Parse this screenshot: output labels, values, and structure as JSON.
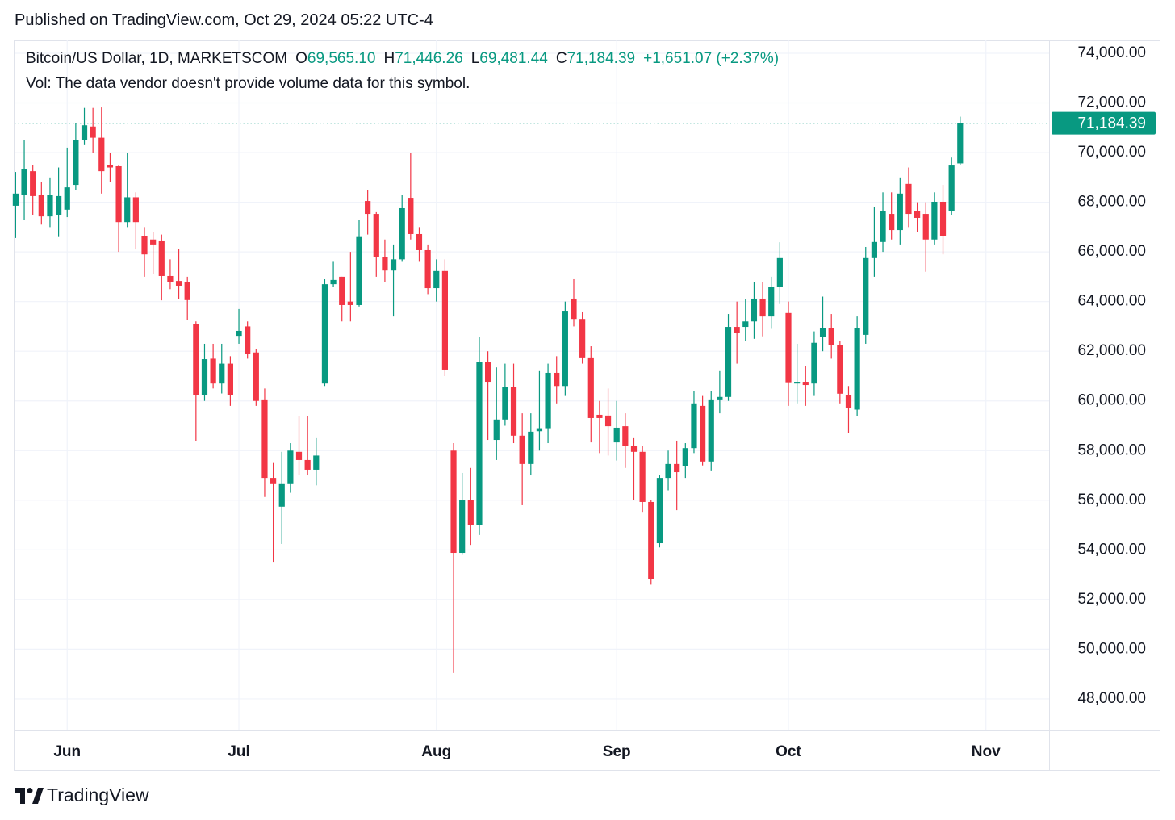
{
  "header": {
    "title": "Published on TradingView.com, Oct 29, 2024 05:22 UTC-4"
  },
  "chart_data": {
    "type": "candlestick",
    "symbol": "Bitcoin/US Dollar, 1D, MARKETSCOM",
    "legend_values": [
      {
        "key": "O",
        "label": "69,565.10"
      },
      {
        "key": "H",
        "label": "71,446.26"
      },
      {
        "key": "L",
        "label": "69,481.44"
      },
      {
        "key": "C",
        "label": "71,184.39"
      }
    ],
    "change": "+1,651.07 (+2.37%)",
    "volume_note": "Vol: The data vendor doesn't provide volume data for this symbol.",
    "categories": [
      null,
      null,
      null,
      null,
      null,
      null,
      "Jun",
      null,
      null,
      null,
      null,
      null,
      null,
      null,
      null,
      null,
      null,
      null,
      null,
      null,
      null,
      null,
      null,
      null,
      null,
      null,
      "Jul",
      null,
      null,
      null,
      null,
      null,
      null,
      null,
      null,
      null,
      null,
      null,
      null,
      null,
      null,
      null,
      null,
      null,
      null,
      null,
      null,
      null,
      null,
      "Aug",
      null,
      null,
      null,
      null,
      null,
      null,
      null,
      null,
      null,
      null,
      null,
      null,
      null,
      null,
      null,
      null,
      null,
      null,
      null,
      null,
      "Sep",
      null,
      null,
      null,
      null,
      null,
      null,
      null,
      null,
      null,
      null,
      null,
      null,
      null,
      null,
      null,
      null,
      null,
      null,
      null,
      "Oct",
      null,
      null,
      null,
      null,
      null,
      null,
      null,
      null,
      null,
      null,
      null,
      null,
      null,
      null,
      null,
      null,
      null,
      null,
      null,
      null,
      null,
      null,
      "Nov"
    ],
    "open": [
      67860,
      68310,
      69250,
      68280,
      67430,
      67500,
      67700,
      68700,
      70500,
      71050,
      70600,
      69500,
      69450,
      67200,
      68200,
      66650,
      66500,
      66460,
      65030,
      64830,
      64770,
      63080,
      60220,
      61700,
      60700,
      61500,
      62620,
      63000,
      61950,
      60060,
      56900,
      55740,
      56650,
      57950,
      57620,
      57230,
      60700,
      64700,
      65000,
      64000,
      63860,
      68050,
      67530,
      65800,
      65250,
      65700,
      68180,
      66720,
      66070,
      64540,
      65230,
      58000,
      53880,
      56000,
      55000,
      61580,
      58430,
      59250,
      60550,
      58600,
      57460,
      58780,
      58900,
      61130,
      60600,
      64120,
      63300,
      61750,
      59440,
      59410,
      58330,
      58980,
      58200,
      57950,
      55930,
      54270,
      56900,
      57460,
      57370,
      58100,
      59800,
      57560,
      60060,
      60160,
      62980,
      62980,
      63200,
      64120,
      63400,
      64600,
      63540,
      60700,
      60770,
      60700,
      62560,
      62920,
      62240,
      60220,
      59650,
      62660,
      65750,
      66400,
      67530,
      66880,
      68740,
      67630,
      67530,
      66500,
      68020,
      67630,
      69565.1,
      null,
      null,
      null
    ],
    "high": [
      69220,
      70520,
      69500,
      68800,
      69000,
      69400,
      70200,
      71200,
      71800,
      71800,
      71820,
      70000,
      69500,
      70000,
      68400,
      67000,
      66800,
      66700,
      65700,
      66130,
      65000,
      63200,
      62300,
      62300,
      62300,
      61800,
      63700,
      63200,
      62100,
      60500,
      57500,
      57950,
      58300,
      59400,
      59400,
      58500,
      64900,
      65600,
      65000,
      66000,
      67300,
      68500,
      67600,
      66500,
      66300,
      68300,
      70000,
      67000,
      66300,
      65700,
      65700,
      58300,
      57100,
      57300,
      62560,
      62000,
      61350,
      61500,
      61500,
      59500,
      59500,
      61200,
      61500,
      61800,
      64000,
      64900,
      63600,
      62200,
      60000,
      60500,
      60000,
      59500,
      58500,
      58200,
      56000,
      57000,
      58000,
      58400,
      58300,
      60400,
      60200,
      60400,
      61200,
      63500,
      64000,
      64100,
      64800,
      64800,
      65000,
      66390,
      64000,
      62300,
      61400,
      62800,
      64200,
      63500,
      62400,
      60600,
      63400,
      66200,
      67800,
      68400,
      68400,
      69000,
      69400,
      68000,
      68000,
      68400,
      68700,
      69800,
      71446.26,
      null,
      null,
      null
    ],
    "low": [
      66560,
      67300,
      67500,
      67100,
      67000,
      66600,
      67400,
      68500,
      70300,
      70000,
      68350,
      68800,
      66000,
      67000,
      66100,
      65000,
      65100,
      64050,
      64500,
      64100,
      63250,
      58370,
      60000,
      60500,
      60300,
      59800,
      62300,
      61700,
      59800,
      56130,
      53520,
      54240,
      56300,
      57000,
      57000,
      56600,
      60600,
      64600,
      63200,
      63200,
      63800,
      66700,
      65000,
      64800,
      63400,
      65600,
      66500,
      65600,
      64300,
      64000,
      61000,
      49040,
      53800,
      54200,
      54600,
      58430,
      57620,
      59000,
      58300,
      55800,
      57000,
      58000,
      58300,
      59900,
      60200,
      63000,
      61500,
      58330,
      57900,
      57800,
      57600,
      57300,
      56000,
      55500,
      52600,
      54100,
      56400,
      55600,
      56900,
      57900,
      57400,
      57200,
      59500,
      60000,
      61500,
      62400,
      62500,
      62600,
      62900,
      63900,
      59800,
      59900,
      59800,
      60200,
      62000,
      61700,
      59900,
      58700,
      59400,
      62300,
      65000,
      66000,
      66500,
      66300,
      67000,
      66800,
      65200,
      66300,
      65900,
      67500,
      69481.44,
      null,
      null,
      null
    ],
    "close": [
      68350,
      69320,
      68250,
      67430,
      68280,
      68250,
      68600,
      70500,
      71100,
      70600,
      69250,
      69400,
      67200,
      68200,
      67200,
      65900,
      66300,
      65030,
      64770,
      64640,
      64060,
      60220,
      61680,
      60700,
      61500,
      60220,
      62820,
      61900,
      60000,
      56900,
      56650,
      56650,
      58000,
      57620,
      57230,
      57800,
      64700,
      64870,
      63860,
      63860,
      66600,
      67530,
      65800,
      65250,
      65700,
      67760,
      66720,
      66070,
      64540,
      65230,
      61260,
      53880,
      56000,
      55000,
      61580,
      60770,
      59250,
      60550,
      58600,
      57460,
      58760,
      58900,
      61130,
      60600,
      63630,
      63300,
      61750,
      59310,
      59310,
      58980,
      58920,
      58200,
      57950,
      55930,
      52810,
      56900,
      57460,
      57130,
      58100,
      59900,
      57560,
      60060,
      60160,
      62980,
      62750,
      63200,
      64120,
      63400,
      64600,
      65750,
      60750,
      60770,
      60640,
      62340,
      62920,
      62240,
      60290,
      59730,
      62920,
      65750,
      66400,
      67630,
      66880,
      68350,
      67530,
      67370,
      66500,
      68020,
      66650,
      69480,
      71184.39,
      null,
      null,
      null
    ],
    "up_color": "#089981",
    "down_color": "#f23645",
    "ylim": [
      46730,
      74520
    ],
    "yticks": [
      {
        "value": 48000,
        "label": "48,000.00"
      },
      {
        "value": 50000,
        "label": "50,000.00"
      },
      {
        "value": 52000,
        "label": "52,000.00"
      },
      {
        "value": 54000,
        "label": "54,000.00"
      },
      {
        "value": 56000,
        "label": "56,000.00"
      },
      {
        "value": 58000,
        "label": "58,000.00"
      },
      {
        "value": 60000,
        "label": "60,000.00"
      },
      {
        "value": 62000,
        "label": "62,000.00"
      },
      {
        "value": 64000,
        "label": "64,000.00"
      },
      {
        "value": 66000,
        "label": "66,000.00"
      },
      {
        "value": 68000,
        "label": "68,000.00"
      },
      {
        "value": 70000,
        "label": "70,000.00"
      },
      {
        "value": 72000,
        "label": "72,000.00"
      },
      {
        "value": 74000,
        "label": "74,000.00"
      }
    ],
    "grid": true,
    "last_price": {
      "value": 71184.39,
      "label": "71,184.39"
    }
  },
  "footer": {
    "brand": "TradingView"
  }
}
